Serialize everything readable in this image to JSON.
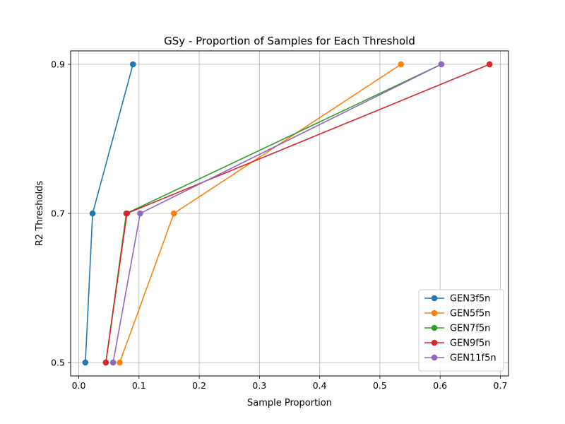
{
  "chart_data": {
    "type": "line",
    "title": "GSy - Proportion of Samples for Each Threshold",
    "xlabel": "Sample Proportion",
    "ylabel": "R2 Thresholds",
    "xlim": [
      -0.0135,
      0.7135
    ],
    "ylim": [
      0.482,
      0.918
    ],
    "xticks": [
      0.0,
      0.1,
      0.2,
      0.3,
      0.4,
      0.5,
      0.6,
      0.7
    ],
    "xtick_labels": [
      "0.0",
      "0.1",
      "0.2",
      "0.3",
      "0.4",
      "0.5",
      "0.6",
      "0.7"
    ],
    "yticks": [
      0.5,
      0.7,
      0.9
    ],
    "ytick_labels": [
      "0.5",
      "0.7",
      "0.9"
    ],
    "grid": true,
    "legend_position": "bottom-right",
    "series": [
      {
        "name": "GEN3f5n",
        "color": "#1f77b4",
        "x": [
          0.011,
          0.023,
          0.09
        ],
        "y": [
          0.5,
          0.7,
          0.9
        ]
      },
      {
        "name": "GEN5f5n",
        "color": "#ff7f0e",
        "x": [
          0.068,
          0.158,
          0.535
        ],
        "y": [
          0.5,
          0.7,
          0.9
        ]
      },
      {
        "name": "GEN7f5n",
        "color": "#2ca02c",
        "x": [
          0.045,
          0.079,
          0.602
        ],
        "y": [
          0.5,
          0.7,
          0.9
        ]
      },
      {
        "name": "GEN9f5n",
        "color": "#d62728",
        "x": [
          0.045,
          0.08,
          0.682
        ],
        "y": [
          0.5,
          0.7,
          0.9
        ]
      },
      {
        "name": "GEN11f5n",
        "color": "#9467bd",
        "x": [
          0.057,
          0.102,
          0.602
        ],
        "y": [
          0.5,
          0.7,
          0.9
        ]
      }
    ]
  }
}
